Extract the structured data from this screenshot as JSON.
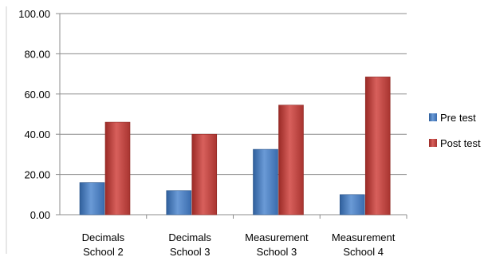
{
  "chart_data": {
    "type": "bar",
    "title": "",
    "xlabel": "",
    "ylabel": "",
    "ylim": [
      0,
      100
    ],
    "yticks": [
      "0.00",
      "20.00",
      "40.00",
      "60.00",
      "80.00",
      "100.00"
    ],
    "categories": [
      [
        "Decimals",
        "School 2"
      ],
      [
        "Decimals",
        "School 3"
      ],
      [
        "Measurement",
        "School 3"
      ],
      [
        "Measurement",
        "School 4"
      ]
    ],
    "series": [
      {
        "name": "Pre test",
        "color": "#4F81BD",
        "values": [
          16,
          12,
          32.5,
          10
        ]
      },
      {
        "name": "Post test",
        "color": "#C0504D",
        "values": [
          46,
          40,
          54.5,
          68.5
        ]
      }
    ],
    "grid": true,
    "legend_position": "right"
  }
}
